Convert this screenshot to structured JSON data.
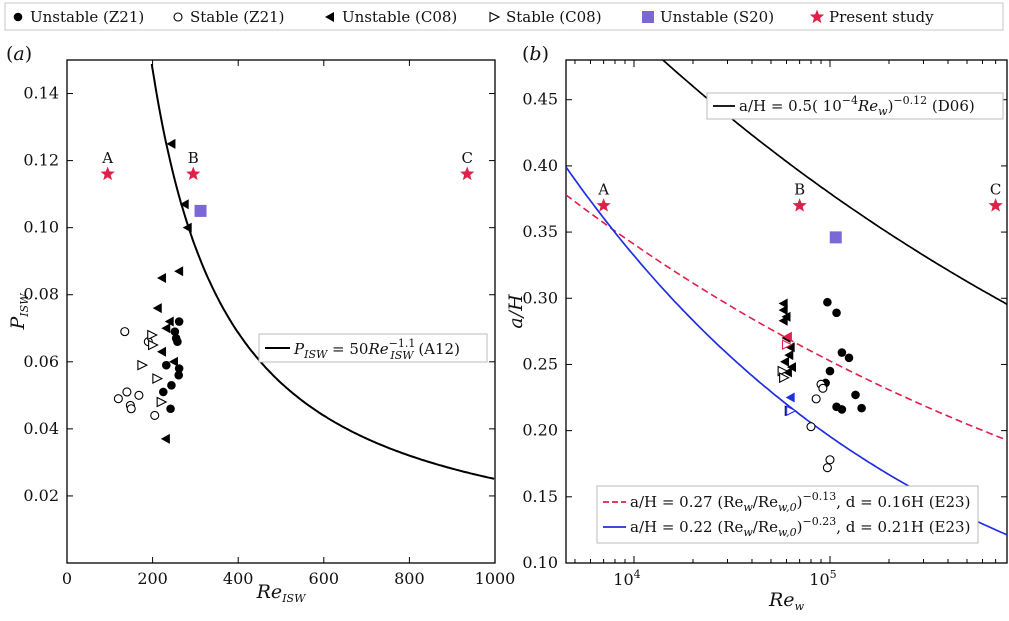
{
  "legend": {
    "items": [
      {
        "label": "Unstable (Z21)",
        "marker": "circle-filled",
        "color": "#000000"
      },
      {
        "label": "Stable (Z21)",
        "marker": "circle-open",
        "color": "#000000"
      },
      {
        "label": "Unstable (C08)",
        "marker": "triangle-left-filled",
        "color": "#000000"
      },
      {
        "label": "Stable (C08)",
        "marker": "triangle-right-open",
        "color": "#000000"
      },
      {
        "label": "Unstable (S20)",
        "marker": "square-filled",
        "color": "#7b68d6"
      },
      {
        "label": "Present study",
        "marker": "star",
        "color": "#e0204b"
      }
    ]
  },
  "chart_data": [
    {
      "type": "scatter",
      "panel_label": "(a)",
      "xlabel": "Re_ISW",
      "ylabel": "P_ISW",
      "xlim": [
        0,
        1000
      ],
      "ylim": [
        0,
        0.15
      ],
      "x_ticks": [
        "0",
        "200",
        "400",
        "600",
        "800",
        "1000"
      ],
      "y_ticks": [
        "0.02",
        "0.04",
        "0.06",
        "0.08",
        "0.10",
        "0.12",
        "0.14"
      ],
      "series": [
        {
          "name": "Unstable (Z21)",
          "points": [
            [
              262,
              0.072
            ],
            [
              252,
              0.069
            ],
            [
              255,
              0.067
            ],
            [
              258,
              0.066
            ],
            [
              262,
              0.058
            ],
            [
              261,
              0.056
            ],
            [
              232,
              0.059
            ],
            [
              244,
              0.053
            ],
            [
              225,
              0.051
            ],
            [
              242,
              0.046
            ]
          ]
        },
        {
          "name": "Stable (Z21)",
          "points": [
            [
              120,
              0.049
            ],
            [
              135,
              0.069
            ],
            [
              140,
              0.051
            ],
            [
              148,
              0.047
            ],
            [
              150,
              0.046
            ],
            [
              168,
              0.05
            ],
            [
              190,
              0.066
            ],
            [
              205,
              0.044
            ]
          ]
        },
        {
          "name": "Unstable (C08)",
          "points": [
            [
              244,
              0.125
            ],
            [
              275,
              0.107
            ],
            [
              282,
              0.1
            ],
            [
              262,
              0.087
            ],
            [
              222,
              0.085
            ],
            [
              212,
              0.076
            ],
            [
              240,
              0.072
            ],
            [
              232,
              0.07
            ],
            [
              222,
              0.063
            ],
            [
              250,
              0.06
            ],
            [
              231,
              0.037
            ]
          ]
        },
        {
          "name": "Stable (C08)",
          "points": [
            [
              198,
              0.068
            ],
            [
              200,
              0.065
            ],
            [
              175,
              0.059
            ],
            [
              210,
              0.055
            ],
            [
              220,
              0.048
            ]
          ]
        },
        {
          "name": "Unstable (S20)",
          "points": [
            [
              312,
              0.105
            ]
          ]
        },
        {
          "name": "Present study",
          "points": [
            [
              95,
              0.116
            ],
            [
              295,
              0.116
            ],
            [
              935,
              0.116
            ]
          ]
        }
      ],
      "point_labels": [
        "A",
        "B",
        "C"
      ],
      "curves": [
        {
          "label_prefix": "P",
          "label_sub": "ISW",
          "label_mid": " = 50",
          "label_re": "Re",
          "label_sup": "−1.1",
          "label_sub2": "ISW",
          "label_suffix": " (A12)",
          "coef": 50,
          "exponent": -1.1,
          "color": "#000000",
          "style": "solid"
        }
      ]
    },
    {
      "type": "scatter",
      "panel_label": "(b)",
      "xlabel": "Re_w",
      "ylabel": "a/H",
      "x_scale": "log",
      "xlim": [
        4500,
        800000
      ],
      "ylim": [
        0.1,
        0.48
      ],
      "x_ticks": [
        {
          "value": 10000,
          "base": "10",
          "exp": "4"
        },
        {
          "value": 100000,
          "base": "10",
          "exp": "5"
        }
      ],
      "y_ticks": [
        "0.10",
        "0.15",
        "0.20",
        "0.25",
        "0.30",
        "0.35",
        "0.40",
        "0.45"
      ],
      "series": [
        {
          "name": "Unstable (Z21)",
          "points": [
            [
              97000,
              0.297
            ],
            [
              108000,
              0.289
            ],
            [
              115000,
              0.259
            ],
            [
              125000,
              0.255
            ],
            [
              100000,
              0.245
            ],
            [
              95000,
              0.236
            ],
            [
              135000,
              0.227
            ],
            [
              108000,
              0.218
            ],
            [
              115000,
              0.216
            ],
            [
              145000,
              0.217
            ]
          ]
        },
        {
          "name": "Stable (Z21)",
          "points": [
            [
              90000,
              0.235
            ],
            [
              92000,
              0.232
            ],
            [
              85000,
              0.224
            ],
            [
              80000,
              0.203
            ],
            [
              100000,
              0.178
            ],
            [
              97000,
              0.172
            ]
          ]
        },
        {
          "name": "Unstable (C08)",
          "points": [
            [
              58000,
              0.296
            ],
            [
              58000,
              0.291
            ],
            [
              60000,
              0.286
            ],
            [
              58000,
              0.283
            ],
            [
              60000,
              0.27
            ],
            [
              63000,
              0.263
            ],
            [
              62000,
              0.257
            ],
            [
              59000,
              0.252
            ],
            [
              64000,
              0.248
            ],
            [
              61000,
              0.244
            ]
          ]
        },
        {
          "name": "Stable (C08)",
          "points": [
            [
              57000,
              0.245
            ],
            [
              58000,
              0.24
            ],
            [
              62000,
              0.215
            ]
          ]
        },
        {
          "name": "Unstable (S20)",
          "points": [
            [
              107000,
              0.346
            ]
          ]
        },
        {
          "name": "Present study",
          "points": [
            [
              7000,
              0.37
            ],
            [
              70000,
              0.37
            ],
            [
              700000,
              0.37
            ]
          ]
        }
      ],
      "point_labels": [
        "A",
        "B",
        "C"
      ],
      "extra_markers": [
        {
          "marker": "triangle-left-filled",
          "color": "#e0204b",
          "x": 61000,
          "y": 0.271
        },
        {
          "marker": "triangle-right-open",
          "color": "#e0204b",
          "x": 60000,
          "y": 0.265
        },
        {
          "marker": "triangle-left-filled",
          "color": "#1f2ee0",
          "x": 63000,
          "y": 0.225
        },
        {
          "marker": "triangle-right-open",
          "color": "#1f2ee0",
          "x": 63000,
          "y": 0.215
        }
      ],
      "curves": [
        {
          "text": "a/H = 0.5( 10",
          "sup": "−4",
          "text2": "Re",
          "sub": "w",
          "text3": ")",
          "sup2": "−0.12",
          "text4": " (D06)",
          "coef": 0.5,
          "exponent": -0.12,
          "color": "#000000",
          "style": "solid"
        },
        {
          "text": "a/H = 0.27 (Re",
          "sub": "w",
          "text2": "/Re",
          "sub2": "w,0",
          "text3": ")",
          "sup": "−0.13",
          "text4": ", d = 0.16H (E23)",
          "coef": 0.27,
          "exponent": -0.13,
          "ref": 60000,
          "color": "#e0204b",
          "style": "dashed"
        },
        {
          "text": "a/H = 0.22 (Re",
          "sub": "w",
          "text2": "/Re",
          "sub2": "w,0",
          "text3": ")",
          "sup": "−0.23",
          "text4": ", d = 0.21H (E23)",
          "coef": 0.22,
          "exponent": -0.23,
          "ref": 60000,
          "color": "#1f2ee0",
          "style": "solid"
        }
      ]
    }
  ]
}
